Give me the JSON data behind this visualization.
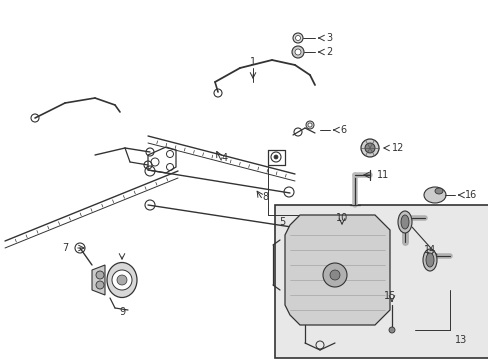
{
  "bg_color": "#ffffff",
  "fig_width": 4.89,
  "fig_height": 3.6,
  "dpi": 100,
  "dgray": "#333333",
  "lgray": "#aaaaaa",
  "box_fill": "#e0e0e0"
}
